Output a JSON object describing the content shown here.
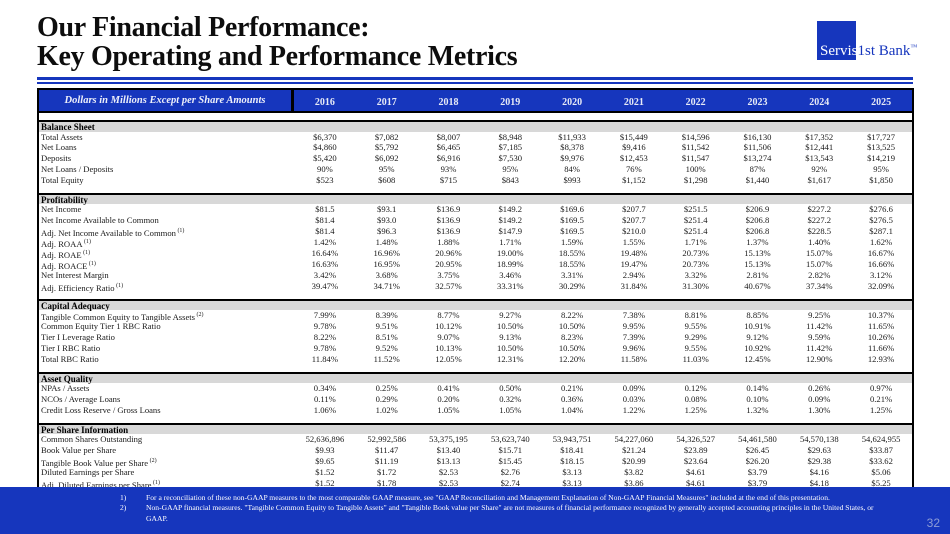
{
  "colors": {
    "brand_blue": "#1636bd",
    "section_gray": "#d8d8d8"
  },
  "header": {
    "title_line1": "Our Financial Performance:",
    "title_line2": "Key Operating and Performance Metrics",
    "logo": {
      "part1": "Servis",
      "part2": "1st Bank",
      "trademark": "™"
    }
  },
  "table": {
    "corner_label": "Dollars in Millions Except per Share Amounts",
    "years": [
      "2016",
      "2017",
      "2018",
      "2019",
      "2020",
      "2021",
      "2022",
      "2023",
      "2024",
      "2025"
    ],
    "sections": [
      {
        "name": "Balance Sheet",
        "rows": [
          {
            "label": "Total Assets",
            "sup": "",
            "values": [
              "$6,370",
              "$7,082",
              "$8,007",
              "$8,948",
              "$11,933",
              "$15,449",
              "$14,596",
              "$16,130",
              "$17,352",
              "$17,727"
            ]
          },
          {
            "label": "Net Loans",
            "sup": "",
            "values": [
              "$4,860",
              "$5,792",
              "$6,465",
              "$7,185",
              "$8,378",
              "$9,416",
              "$11,542",
              "$11,506",
              "$12,441",
              "$13,525"
            ]
          },
          {
            "label": "Deposits",
            "sup": "",
            "values": [
              "$5,420",
              "$6,092",
              "$6,916",
              "$7,530",
              "$9,976",
              "$12,453",
              "$11,547",
              "$13,274",
              "$13,543",
              "$14,219"
            ]
          },
          {
            "label": "Net Loans / Deposits",
            "sup": "",
            "values": [
              "90%",
              "95%",
              "93%",
              "95%",
              "84%",
              "76%",
              "100%",
              "87%",
              "92%",
              "95%"
            ]
          },
          {
            "label": "Total Equity",
            "sup": "",
            "values": [
              "$523",
              "$608",
              "$715",
              "$843",
              "$993",
              "$1,152",
              "$1,298",
              "$1,440",
              "$1,617",
              "$1,850"
            ]
          }
        ]
      },
      {
        "name": "Profitability",
        "rows": [
          {
            "label": "Net Income",
            "sup": "",
            "values": [
              "$81.5",
              "$93.1",
              "$136.9",
              "$149.2",
              "$169.6",
              "$207.7",
              "$251.5",
              "$206.9",
              "$227.2",
              "$276.6"
            ]
          },
          {
            "label": "Net Income Available to Common",
            "sup": "",
            "values": [
              "$81.4",
              "$93.0",
              "$136.9",
              "$149.2",
              "$169.5",
              "$207.7",
              "$251.4",
              "$206.8",
              "$227.2",
              "$276.5"
            ]
          },
          {
            "label": "Adj. Net Income Available to Common",
            "sup": "(1)",
            "values": [
              "$81.4",
              "$96.3",
              "$136.9",
              "$147.9",
              "$169.5",
              "$210.0",
              "$251.4",
              "$206.8",
              "$228.5",
              "$287.1"
            ]
          },
          {
            "label": "Adj. ROAA",
            "sup": "(1)",
            "values": [
              "1.42%",
              "1.48%",
              "1.88%",
              "1.71%",
              "1.59%",
              "1.55%",
              "1.71%",
              "1.37%",
              "1.40%",
              "1.62%"
            ]
          },
          {
            "label": "Adj. ROAE",
            "sup": "(1)",
            "values": [
              "16.64%",
              "16.96%",
              "20.96%",
              "19.00%",
              "18.55%",
              "19.48%",
              "20.73%",
              "15.13%",
              "15.07%",
              "16.67%"
            ]
          },
          {
            "label": "Adj. ROACE",
            "sup": "(1)",
            "values": [
              "16.63%",
              "16.95%",
              "20.95%",
              "18.99%",
              "18.55%",
              "19.47%",
              "20.73%",
              "15.13%",
              "15.07%",
              "16.66%"
            ]
          },
          {
            "label": "Net Interest Margin",
            "sup": "",
            "values": [
              "3.42%",
              "3.68%",
              "3.75%",
              "3.46%",
              "3.31%",
              "2.94%",
              "3.32%",
              "2.81%",
              "2.82%",
              "3.12%"
            ]
          },
          {
            "label": "Adj. Efficiency Ratio",
            "sup": "(1)",
            "values": [
              "39.47%",
              "34.71%",
              "32.57%",
              "33.31%",
              "30.29%",
              "31.84%",
              "31.30%",
              "40.67%",
              "37.34%",
              "32.09%"
            ]
          }
        ]
      },
      {
        "name": "Capital Adequacy",
        "rows": [
          {
            "label": "Tangible Common Equity to Tangible Assets",
            "sup": "(2)",
            "values": [
              "7.99%",
              "8.39%",
              "8.77%",
              "9.27%",
              "8.22%",
              "7.38%",
              "8.81%",
              "8.85%",
              "9.25%",
              "10.37%"
            ]
          },
          {
            "label": "Common Equity Tier 1 RBC Ratio",
            "sup": "",
            "values": [
              "9.78%",
              "9.51%",
              "10.12%",
              "10.50%",
              "10.50%",
              "9.95%",
              "9.55%",
              "10.91%",
              "11.42%",
              "11.65%"
            ]
          },
          {
            "label": "Tier I Leverage Ratio",
            "sup": "",
            "values": [
              "8.22%",
              "8.51%",
              "9.07%",
              "9.13%",
              "8.23%",
              "7.39%",
              "9.29%",
              "9.12%",
              "9.59%",
              "10.26%"
            ]
          },
          {
            "label": "Tier I RBC Ratio",
            "sup": "",
            "values": [
              "9.78%",
              "9.52%",
              "10.13%",
              "10.50%",
              "10.50%",
              "9.96%",
              "9.55%",
              "10.92%",
              "11.42%",
              "11.66%"
            ]
          },
          {
            "label": "Total RBC Ratio",
            "sup": "",
            "values": [
              "11.84%",
              "11.52%",
              "12.05%",
              "12.31%",
              "12.20%",
              "11.58%",
              "11.03%",
              "12.45%",
              "12.90%",
              "12.93%"
            ]
          }
        ]
      },
      {
        "name": "Asset Quality",
        "rows": [
          {
            "label": "NPAs / Assets",
            "sup": "",
            "values": [
              "0.34%",
              "0.25%",
              "0.41%",
              "0.50%",
              "0.21%",
              "0.09%",
              "0.12%",
              "0.14%",
              "0.26%",
              "0.97%"
            ]
          },
          {
            "label": "NCOs / Average Loans",
            "sup": "",
            "values": [
              "0.11%",
              "0.29%",
              "0.20%",
              "0.32%",
              "0.36%",
              "0.03%",
              "0.08%",
              "0.10%",
              "0.09%",
              "0.21%"
            ]
          },
          {
            "label": "Credit Loss Reserve / Gross Loans",
            "sup": "",
            "values": [
              "1.06%",
              "1.02%",
              "1.05%",
              "1.05%",
              "1.04%",
              "1.22%",
              "1.25%",
              "1.32%",
              "1.30%",
              "1.25%"
            ]
          }
        ]
      },
      {
        "name": "Per Share Information",
        "rows": [
          {
            "label": "Common Shares Outstanding",
            "sup": "",
            "values": [
              "52,636,896",
              "52,992,586",
              "53,375,195",
              "53,623,740",
              "53,943,751",
              "54,227,060",
              "54,326,527",
              "54,461,580",
              "54,570,138",
              "54,624,955"
            ]
          },
          {
            "label": "Book Value per Share",
            "sup": "",
            "values": [
              "$9.93",
              "$11.47",
              "$13.40",
              "$15.71",
              "$18.41",
              "$21.24",
              "$23.89",
              "$26.45",
              "$29.63",
              "$33.87"
            ]
          },
          {
            "label": "Tangible Book Value per Share",
            "sup": "(2)",
            "values": [
              "$9.65",
              "$11.19",
              "$13.13",
              "$15.45",
              "$18.15",
              "$20.99",
              "$23.64",
              "$26.20",
              "$29.38",
              "$33.62"
            ]
          },
          {
            "label": "Diluted Earnings per Share",
            "sup": "",
            "values": [
              "$1.52",
              "$1.72",
              "$2.53",
              "$2.76",
              "$3.13",
              "$3.82",
              "$4.61",
              "$3.79",
              "$4.16",
              "$5.06"
            ]
          },
          {
            "label": "Adj. Diluted Earnings per Share",
            "sup": "(1)",
            "values": [
              "$1.52",
              "$1.78",
              "$2.53",
              "$2.74",
              "$3.13",
              "$3.86",
              "$4.61",
              "$3.79",
              "$4.18",
              "$5.25"
            ]
          }
        ]
      }
    ]
  },
  "footer": {
    "notes": [
      {
        "num": "1)",
        "text": "For a reconciliation of these non-GAAP measures to the most comparable GAAP measure, see \"GAAP Reconciliation and Management Explanation of Non-GAAP Financial Measures\" included at the end of this presentation."
      },
      {
        "num": "2)",
        "text": "Non-GAAP financial measures. \"Tangible Common Equity to Tangible Assets\" and \"Tangible Book value per Share\" are not measures of financial performance recognized by generally accepted accounting principles in the United States, or GAAP."
      }
    ],
    "page_number": "32"
  }
}
